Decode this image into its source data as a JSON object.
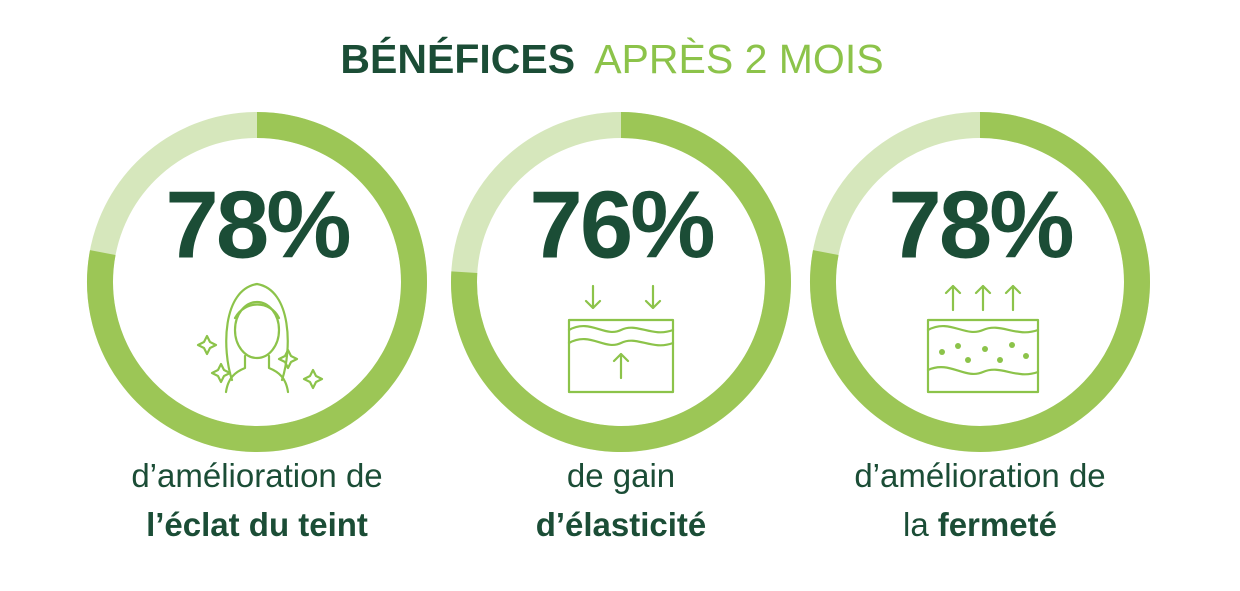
{
  "title": {
    "bold": "BÉNÉFICES",
    "light": "APRÈS 2 MOIS"
  },
  "chart_data": [
    {
      "type": "donut",
      "values": [
        78
      ],
      "value_labels": [
        "78%"
      ],
      "color": "#9cc656",
      "track_color": "#d6e7bc",
      "caption": [
        [
          {
            "text": "d’amélioration de",
            "bold": false
          }
        ],
        [
          {
            "text": "l’éclat du teint",
            "bold": true
          }
        ]
      ]
    },
    {
      "type": "donut",
      "values": [
        76
      ],
      "value_labels": [
        "76%"
      ],
      "color": "#9cc656",
      "track_color": "#d6e7bc",
      "caption": [
        [
          {
            "text": "de gain",
            "bold": false
          }
        ],
        [
          {
            "text": "d’élasticité",
            "bold": true
          }
        ]
      ]
    },
    {
      "type": "donut",
      "values": [
        78
      ],
      "value_labels": [
        "78%"
      ],
      "color": "#9cc656",
      "track_color": "#d6e7bc",
      "caption": [
        [
          {
            "text": "d’amélioration de",
            "bold": false
          }
        ],
        [
          {
            "text": "la",
            "bold": false
          },
          {
            "text": "fermeté",
            "bold": true
          }
        ]
      ]
    }
  ]
}
